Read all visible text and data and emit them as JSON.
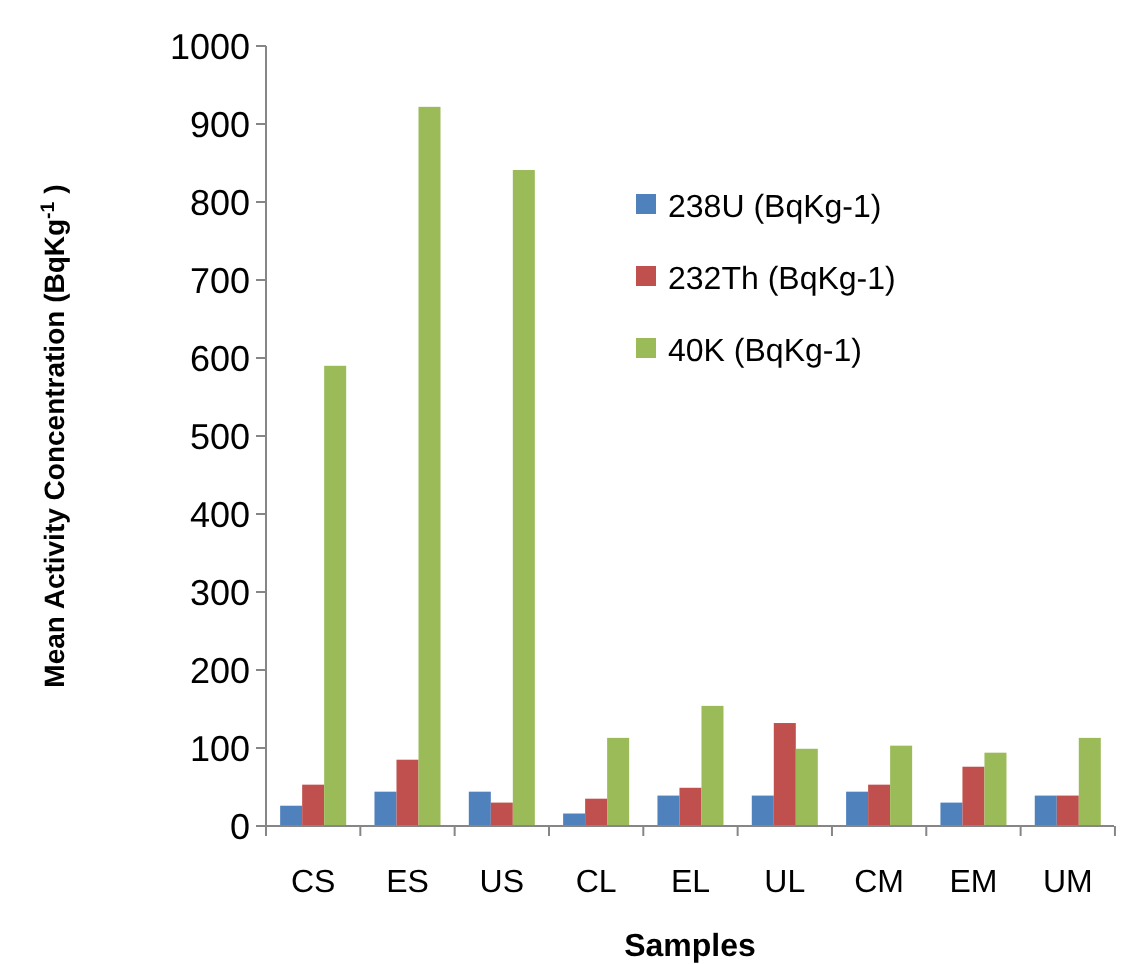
{
  "chart_data": {
    "type": "bar",
    "xlabel": "Samples",
    "ylabel": "Mean Activity Concentration (BqKg$^{-1}$ )",
    "categories": [
      "CS",
      "ES",
      "US",
      "CL",
      "EL",
      "UL",
      "CM",
      "EM",
      "UM"
    ],
    "series": [
      {
        "name": "238U (BqKg-1)",
        "color": "#4f81bd",
        "values": [
          26,
          44,
          44,
          16,
          39,
          39,
          44,
          30,
          39
        ]
      },
      {
        "name": "232Th (BqKg-1)",
        "color": "#c0504d",
        "values": [
          53,
          85,
          30,
          35,
          49,
          132,
          53,
          76,
          39
        ]
      },
      {
        "name": "40K (BqKg-1)",
        "color": "#9bbb59",
        "values": [
          590,
          922,
          841,
          113,
          154,
          99,
          103,
          94,
          113
        ]
      }
    ],
    "ylim": [
      0,
      1000
    ],
    "yticks": [
      0,
      100,
      200,
      300,
      400,
      500,
      600,
      700,
      800,
      900,
      1000
    ],
    "grid": false,
    "legend": "top right"
  }
}
